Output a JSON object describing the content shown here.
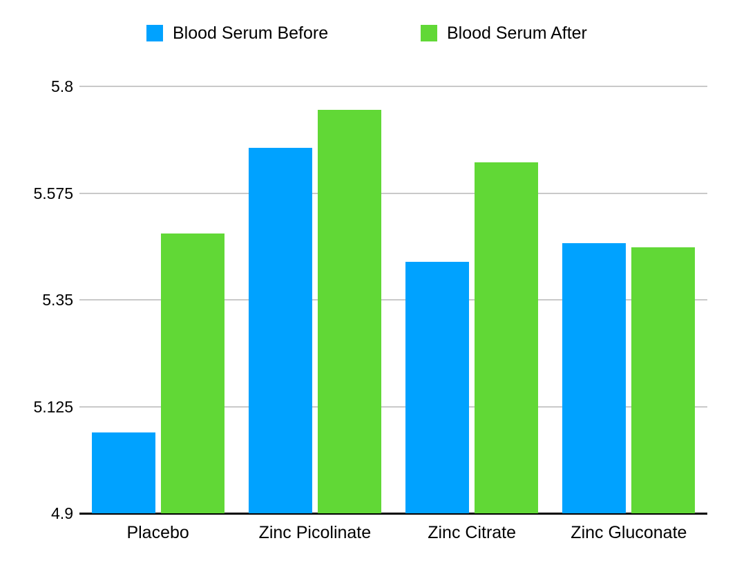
{
  "chart_data": {
    "type": "bar",
    "title": "",
    "categories": [
      "Placebo",
      "Zinc Picolinate",
      "Zinc Citrate",
      "Zinc Gluconate"
    ],
    "series": [
      {
        "name": "Blood Serum Before",
        "color": "#00A2FF",
        "values": [
          5.07,
          5.67,
          5.43,
          5.47
        ]
      },
      {
        "name": "Blood Serum After",
        "color": "#61D836",
        "values": [
          5.49,
          5.75,
          5.64,
          5.46
        ]
      }
    ],
    "xlabel": "",
    "ylabel": "",
    "ylim": [
      4.9,
      5.8
    ],
    "yticks": [
      5.8,
      5.575,
      5.35,
      5.125,
      4.9
    ],
    "ytick_labels": [
      "5.8",
      "5.575",
      "5.35",
      "5.125",
      "4.9"
    ],
    "grid": true,
    "legend_position": "top"
  },
  "colors": {
    "background": "#ffffff",
    "gridline": "#c9c9c9",
    "axis_line": "#000000",
    "text": "#000000"
  }
}
